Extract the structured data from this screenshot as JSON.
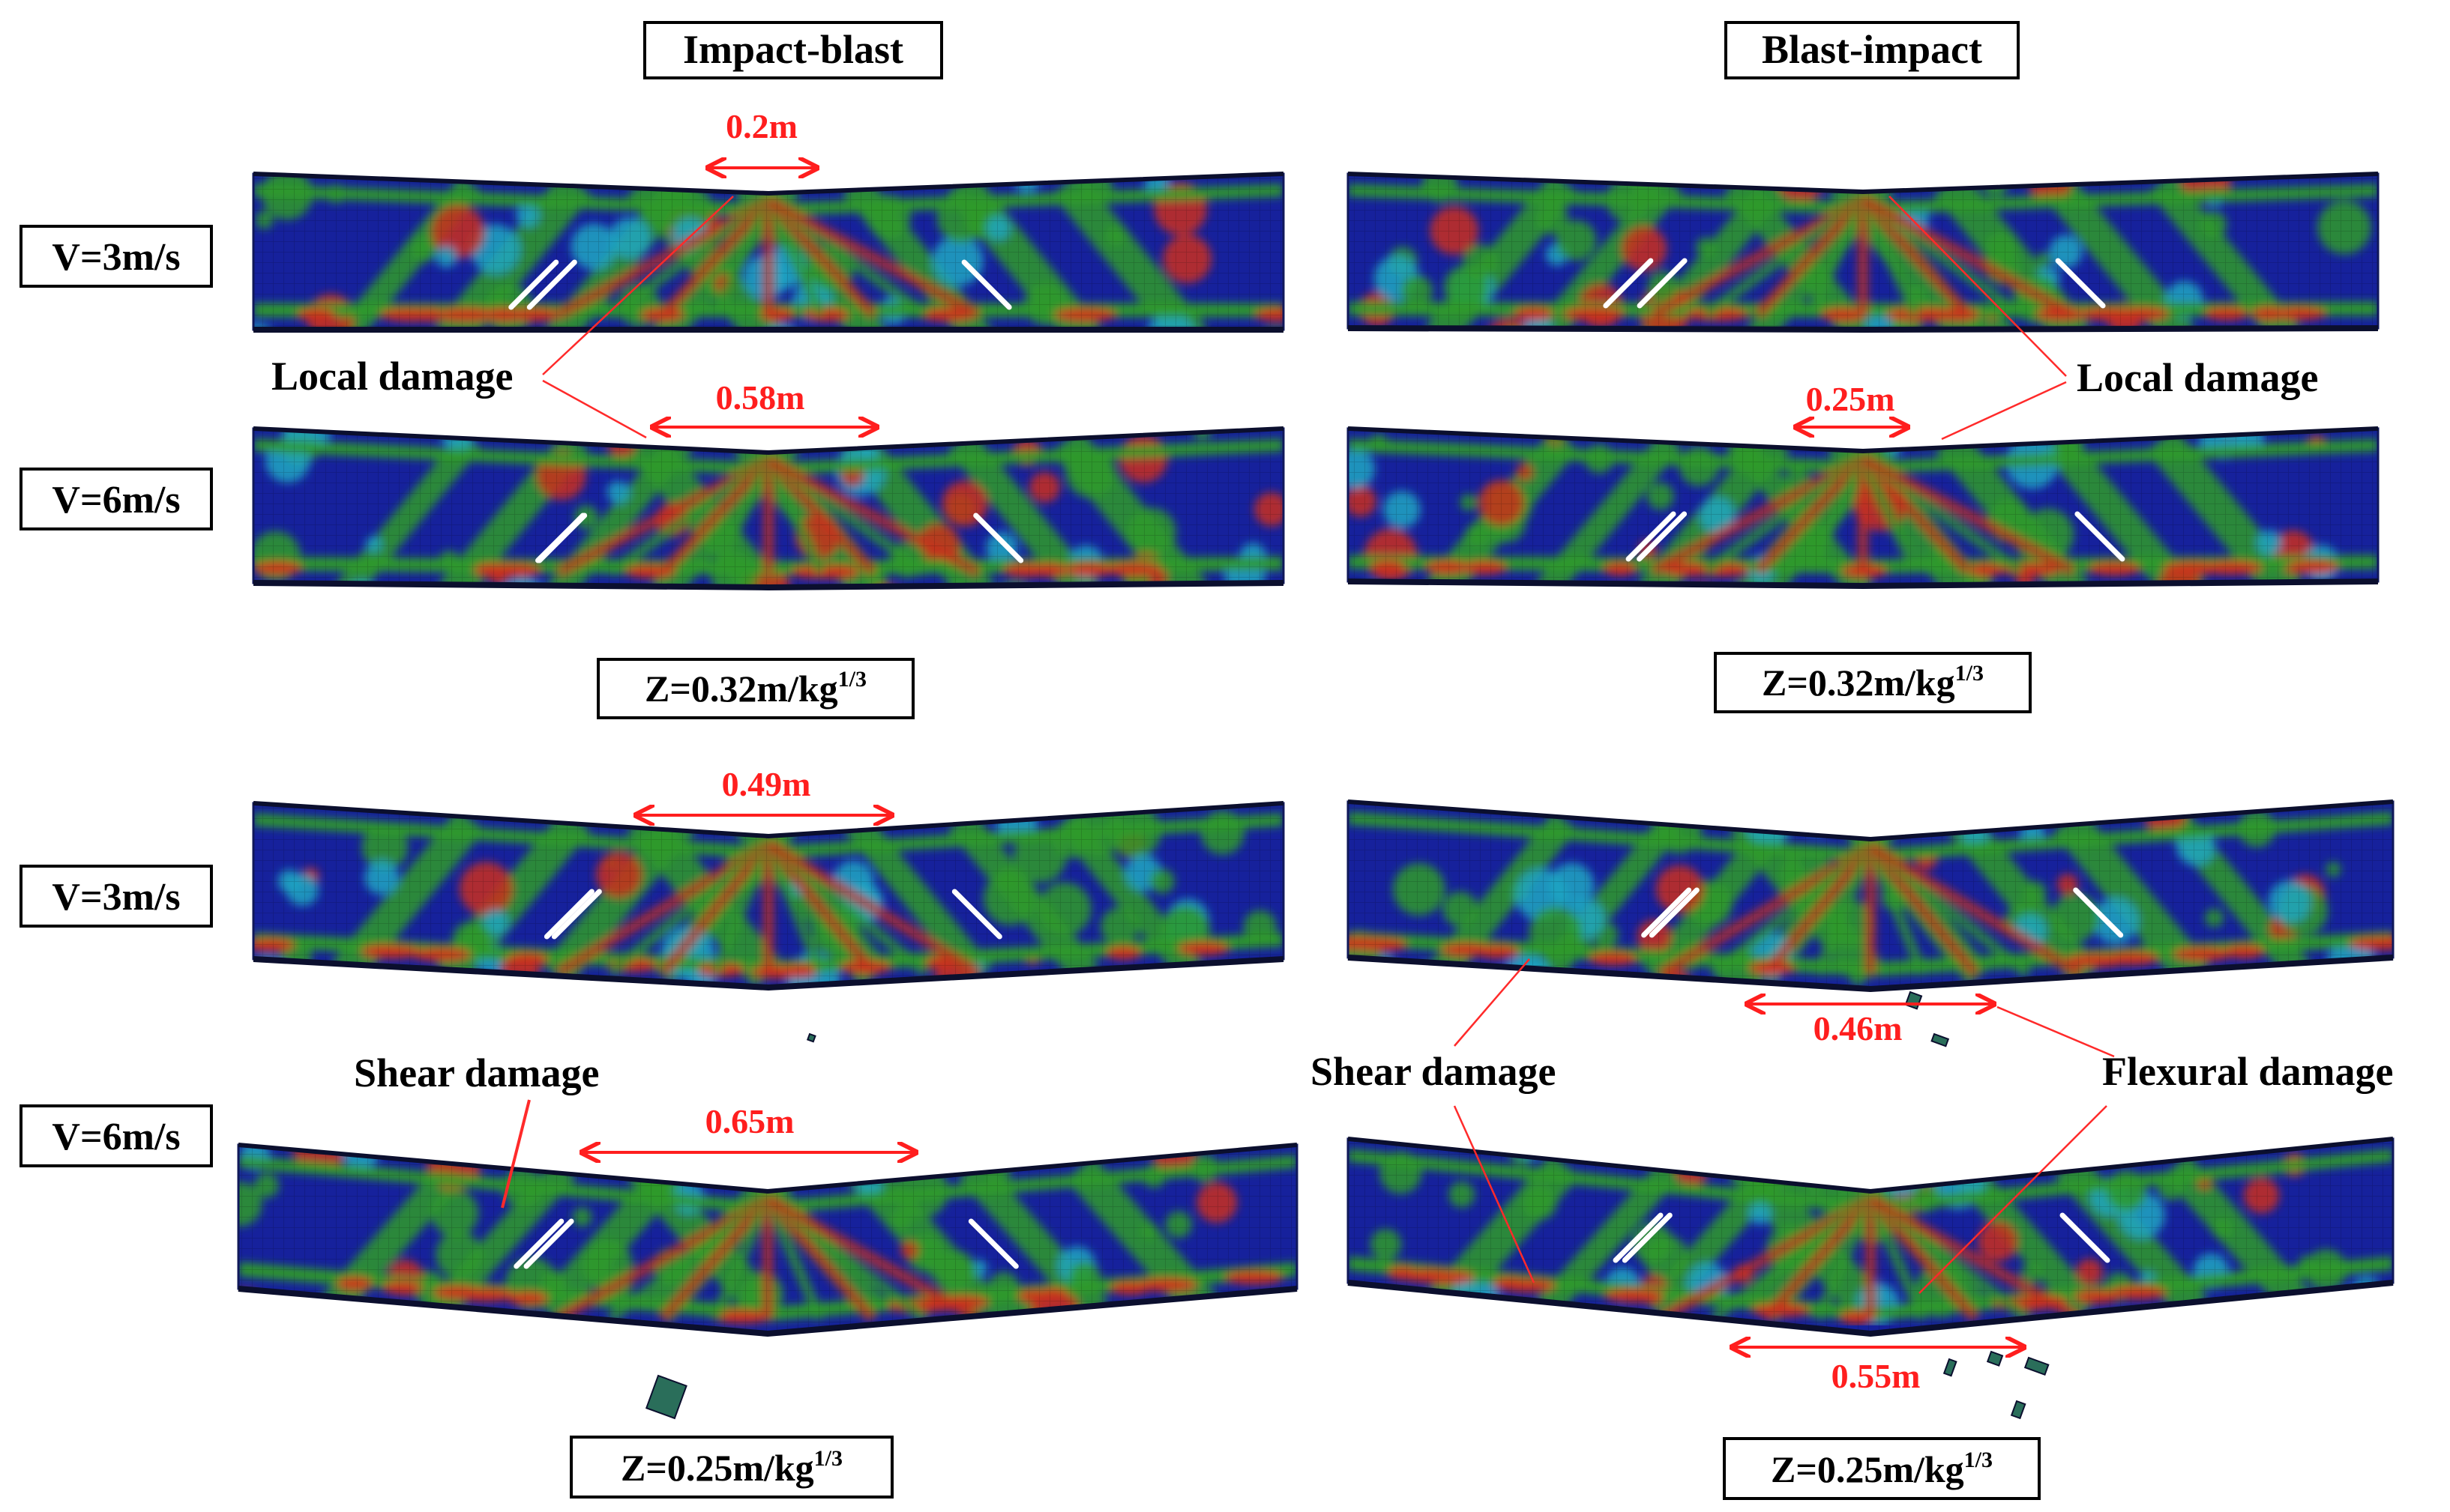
{
  "columns": {
    "left_title": "Impact-blast",
    "right_title": "Blast-impact"
  },
  "velocity_labels": {
    "v3": "V=3m/s",
    "v6": "V=6m/s"
  },
  "scaled_distance": {
    "prefix": "Z=",
    "top_value": "0.32",
    "bottom_value": "0.25",
    "unit": "m/kg",
    "exponent": "1/3"
  },
  "annotations": {
    "local_damage": "Local damage",
    "shear_damage": "Shear damage",
    "flexural_damage": "Flexural damage"
  },
  "measurements": {
    "tl_v3": "0.2m",
    "tl_v6": "0.58m",
    "tr_v6": "0.25m",
    "bl_v3": "0.49m",
    "bl_v6": "0.65m",
    "br_v3": "0.46m",
    "br_v6": "0.55m"
  },
  "colors": {
    "beam_blue": "#16219c",
    "beam_green": "#2f9a2a",
    "beam_red": "#c9301c",
    "beam_cyan": "#1fa6c2",
    "measure_red": "#ff1e1e",
    "crack_white": "#ffffff"
  }
}
